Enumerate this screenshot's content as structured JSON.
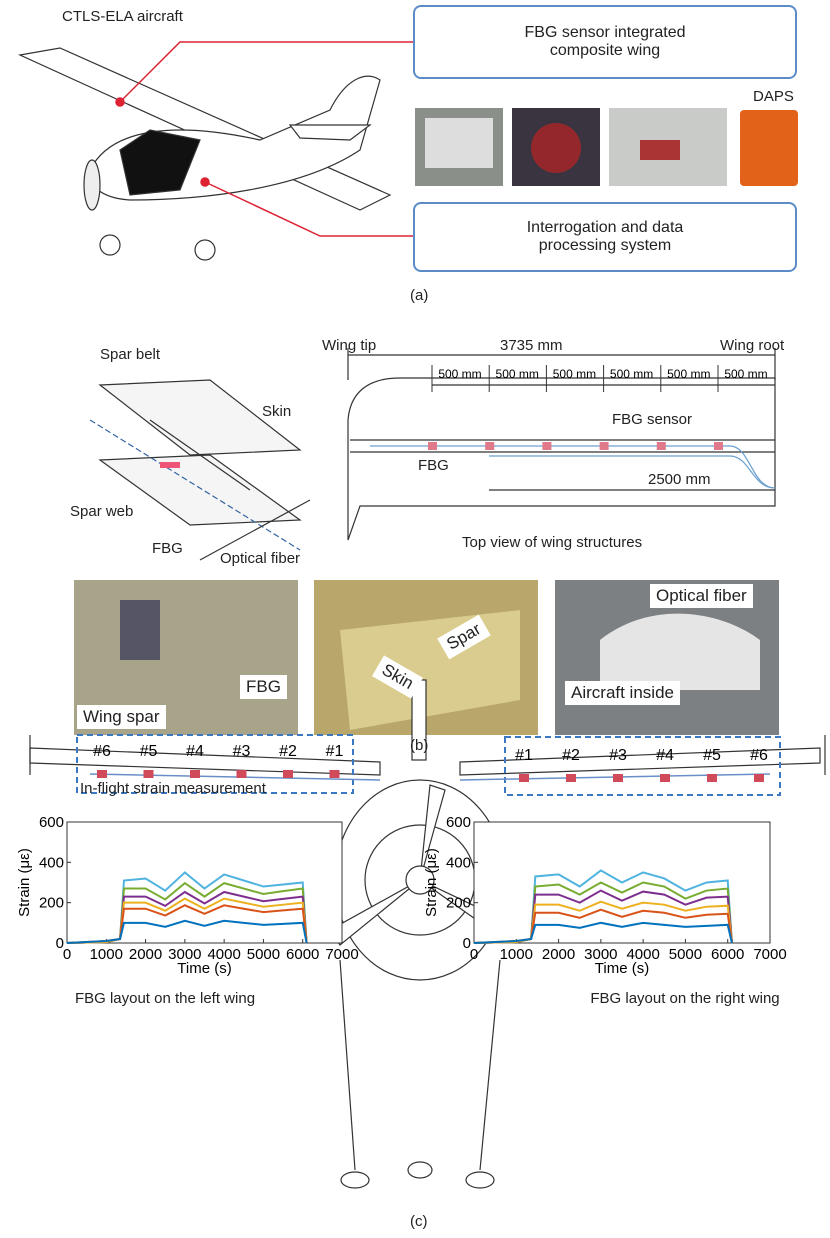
{
  "panel_a": {
    "aircraft_label": "CTLS-ELA aircraft",
    "box_top": "FBG sensor integrated composite wing",
    "daps_label": "DAPS",
    "box_bottom": "Interrogation and data processing system",
    "caption": "(a)"
  },
  "panel_b": {
    "spar_belt": "Spar belt",
    "skin": "Skin",
    "spar_web": "Spar web",
    "fbg": "FBG",
    "optical_fiber": "Optical fiber",
    "wing_tip": "Wing tip",
    "span": "3735 mm",
    "wing_root": "Wing root",
    "segments": [
      "500 mm",
      "500 mm",
      "500 mm",
      "500 mm",
      "500 mm",
      "500 mm"
    ],
    "fbg_sensor": "FBG sensor",
    "fbg_top": "FBG",
    "fbg_length": "2500 mm",
    "top_view": "Top view of wing structures",
    "photo_wing_spar": "Wing spar",
    "photo_fbg": "FBG",
    "photo_spar": "Spar",
    "photo_skin": "Skin",
    "photo_optical_fiber": "Optical fiber",
    "photo_aircraft_inside": "Aircraft inside",
    "caption": "(b)"
  },
  "panel_c": {
    "heading": "In-flight strain measurement",
    "sensors_left": [
      "#6",
      "#5",
      "#4",
      "#3",
      "#2",
      "#1"
    ],
    "sensors_right": [
      "#1",
      "#2",
      "#3",
      "#4",
      "#5",
      "#6"
    ],
    "left_caption": "FBG layout on the left wing",
    "right_caption": "FBG layout on the right wing",
    "caption": "(c)"
  },
  "chart_data": [
    {
      "type": "line",
      "xlabel": "Time (s)",
      "ylabel": "Strain (με)",
      "x": [
        0,
        1000,
        1350,
        1450,
        2000,
        2500,
        3000,
        3500,
        4000,
        4500,
        5000,
        5500,
        6000,
        6100
      ],
      "xlim": [
        0,
        7000
      ],
      "xticks": [
        0,
        1000,
        2000,
        3000,
        4000,
        5000,
        6000,
        7000
      ],
      "ylim": [
        0,
        600
      ],
      "yticks": [
        0,
        200,
        400,
        600
      ],
      "series": [
        {
          "color": "#4fb3e0",
          "values": [
            0,
            5,
            20,
            310,
            320,
            260,
            350,
            270,
            340,
            310,
            280,
            290,
            300,
            0
          ]
        },
        {
          "color": "#77ac30",
          "values": [
            0,
            5,
            20,
            270,
            270,
            216,
            297,
            230,
            297,
            270,
            243,
            257,
            270,
            0
          ]
        },
        {
          "color": "#7e2f8e",
          "values": [
            0,
            5,
            20,
            230,
            230,
            184,
            253,
            196,
            253,
            230,
            207,
            219,
            230,
            0
          ]
        },
        {
          "color": "#edb120",
          "values": [
            0,
            5,
            20,
            200,
            200,
            160,
            220,
            170,
            220,
            200,
            180,
            190,
            200,
            0
          ]
        },
        {
          "color": "#d95319",
          "values": [
            0,
            10,
            20,
            170,
            170,
            136,
            187,
            145,
            187,
            170,
            153,
            162,
            170,
            0
          ]
        },
        {
          "color": "#0072bd",
          "values": [
            0,
            10,
            20,
            100,
            100,
            80,
            110,
            85,
            110,
            100,
            90,
            95,
            100,
            0
          ]
        }
      ]
    },
    {
      "type": "line",
      "xlabel": "Time (s)",
      "ylabel": "Strain (με)",
      "x": [
        0,
        1000,
        1350,
        1450,
        2000,
        2500,
        3000,
        3500,
        4000,
        4500,
        5000,
        5500,
        6000,
        6100
      ],
      "xlim": [
        0,
        7000
      ],
      "xticks": [
        0,
        1000,
        2000,
        3000,
        4000,
        5000,
        6000,
        7000
      ],
      "ylim": [
        0,
        600
      ],
      "yticks": [
        0,
        200,
        400,
        600
      ],
      "series": [
        {
          "color": "#4fb3e0",
          "values": [
            0,
            5,
            20,
            330,
            340,
            280,
            360,
            300,
            350,
            320,
            260,
            300,
            310,
            0
          ]
        },
        {
          "color": "#77ac30",
          "values": [
            0,
            5,
            20,
            280,
            290,
            240,
            300,
            250,
            300,
            280,
            220,
            260,
            270,
            0
          ]
        },
        {
          "color": "#7e2f8e",
          "values": [
            0,
            5,
            20,
            240,
            240,
            200,
            260,
            210,
            255,
            240,
            190,
            225,
            230,
            0
          ]
        },
        {
          "color": "#edb120",
          "values": [
            0,
            5,
            20,
            190,
            190,
            160,
            205,
            170,
            200,
            190,
            160,
            180,
            185,
            0
          ]
        },
        {
          "color": "#d95319",
          "values": [
            0,
            10,
            20,
            150,
            150,
            125,
            165,
            130,
            160,
            150,
            125,
            140,
            145,
            0
          ]
        },
        {
          "color": "#0072bd",
          "values": [
            0,
            10,
            20,
            90,
            90,
            75,
            100,
            80,
            100,
            90,
            80,
            85,
            90,
            0
          ]
        }
      ]
    }
  ]
}
